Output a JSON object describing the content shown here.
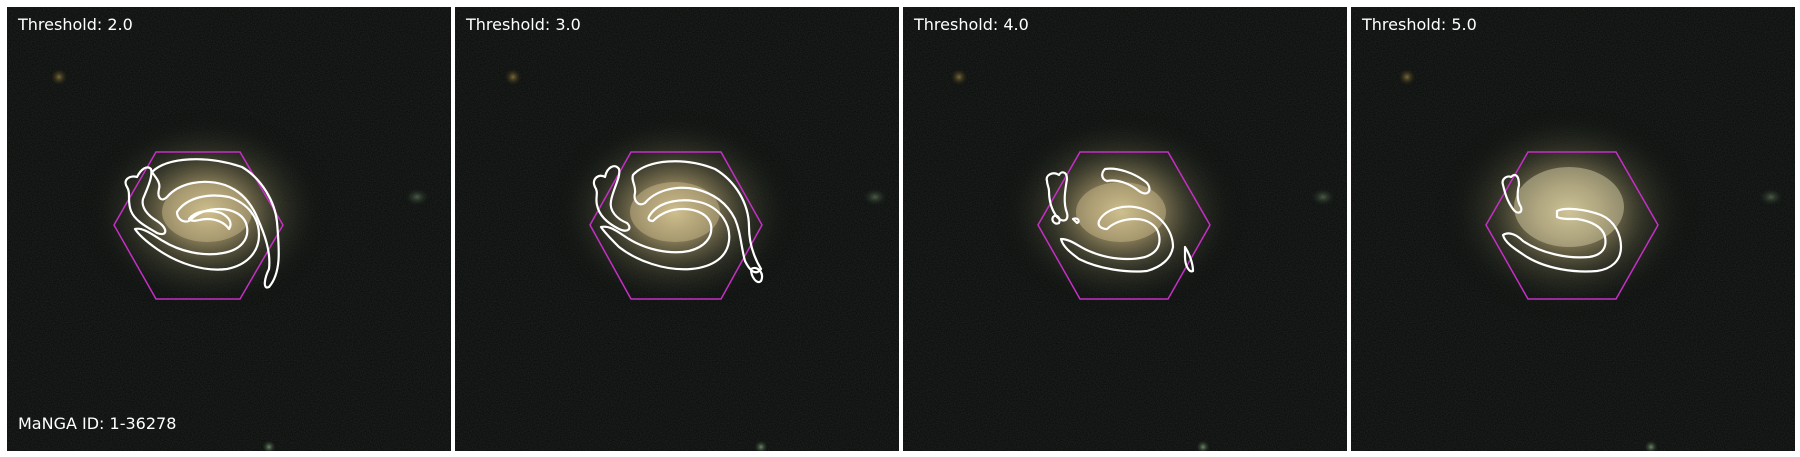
{
  "panels": [
    {
      "threshold_label": "Threshold: 2.0"
    },
    {
      "threshold_label": "Threshold: 3.0"
    },
    {
      "threshold_label": "Threshold: 4.0"
    },
    {
      "threshold_label": "Threshold: 5.0"
    }
  ],
  "manga_id_label": "MaNGA ID: 1-36278",
  "colors": {
    "background": "#050706",
    "galaxy_core": "#c9b98a",
    "contour": "#ffffff",
    "hexagon": "#c62fc6"
  }
}
